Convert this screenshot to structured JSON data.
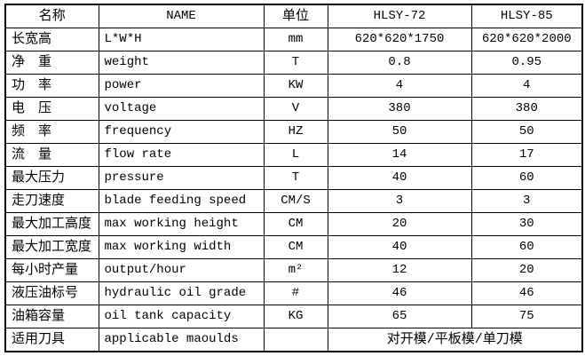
{
  "colors": {
    "border": "#000000",
    "background": "#ffffff",
    "text": "#000000"
  },
  "table": {
    "headers": {
      "name_cn": "名称",
      "name_en": "NAME",
      "unit": "单位",
      "model_1": "HLSY-72",
      "model_2": "HLSY-85"
    },
    "rows": [
      {
        "cn": "长宽高",
        "en": "L*W*H",
        "unit": "mm",
        "hlsy72": "620*620*1750",
        "hlsy85": "620*620*2000"
      },
      {
        "cn": "净　重",
        "en": "weight",
        "unit": "T",
        "hlsy72": "0.8",
        "hlsy85": "0.95"
      },
      {
        "cn": "功　率",
        "en": "power",
        "unit": "KW",
        "hlsy72": "4",
        "hlsy85": "4"
      },
      {
        "cn": "电　压",
        "en": "voltage",
        "unit": "V",
        "hlsy72": "380",
        "hlsy85": "380"
      },
      {
        "cn": "频　率",
        "en": "frequency",
        "unit": "HZ",
        "hlsy72": "50",
        "hlsy85": "50"
      },
      {
        "cn": "流　量",
        "en": "flow rate",
        "unit": "L",
        "hlsy72": "14",
        "hlsy85": "17"
      },
      {
        "cn": "最大压力",
        "en": "pressure",
        "unit": "T",
        "hlsy72": "40",
        "hlsy85": "60"
      },
      {
        "cn": "走刀速度",
        "en": "blade feeding speed",
        "unit": "CM/S",
        "hlsy72": "3",
        "hlsy85": "3"
      },
      {
        "cn": "最大加工高度",
        "en": "max working height",
        "unit": "CM",
        "hlsy72": "20",
        "hlsy85": "30"
      },
      {
        "cn": "最大加工宽度",
        "en": "max working width",
        "unit": "CM",
        "hlsy72": "40",
        "hlsy85": "60"
      },
      {
        "cn": "每小时产量",
        "en": "output/hour",
        "unit": "m²",
        "hlsy72": "12",
        "hlsy85": "20"
      },
      {
        "cn": "液压油标号",
        "en": "hydraulic oil grade",
        "unit": "#",
        "hlsy72": "46",
        "hlsy85": "46"
      },
      {
        "cn": "油箱容量",
        "en": "oil tank capacity",
        "unit": "KG",
        "hlsy72": "65",
        "hlsy85": "75"
      }
    ],
    "last_row": {
      "cn": "适用刀具",
      "en": "applicable maoulds",
      "unit": "",
      "merged_value": "对开模/平板模/单刀模"
    }
  }
}
